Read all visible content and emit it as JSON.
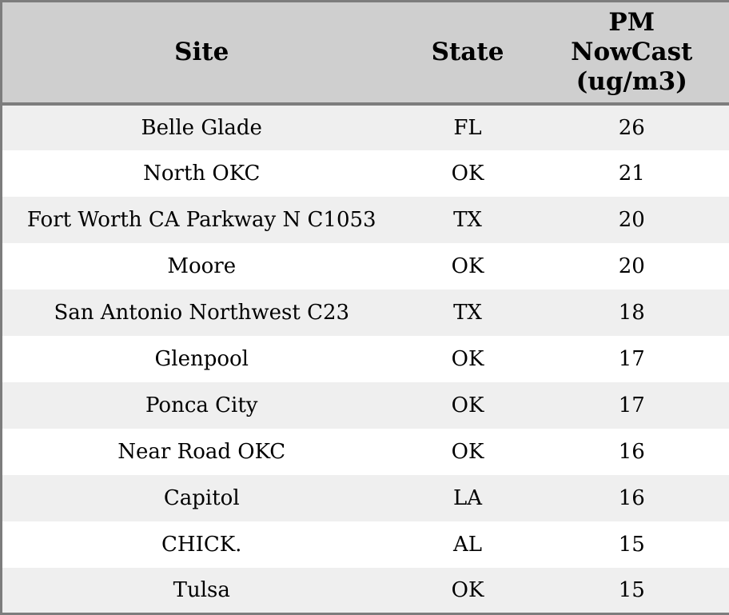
{
  "header": {
    "site": "Site",
    "state": "State",
    "pm_multiline": "PM\nNowCast\n(ug/m3)"
  },
  "chart_data": {
    "type": "table",
    "columns": [
      "Site",
      "State",
      "PM NowCast (ug/m3)"
    ],
    "rows": [
      [
        "Belle Glade",
        "FL",
        26
      ],
      [
        "North OKC",
        "OK",
        21
      ],
      [
        "Fort Worth CA Parkway N C1053",
        "TX",
        20
      ],
      [
        "Moore",
        "OK",
        20
      ],
      [
        "San Antonio Northwest C23",
        "TX",
        18
      ],
      [
        "Glenpool",
        "OK",
        17
      ],
      [
        "Ponca City",
        "OK",
        17
      ],
      [
        "Near Road OKC",
        "OK",
        16
      ],
      [
        "Capitol",
        "LA",
        16
      ],
      [
        "CHICK.",
        "AL",
        15
      ],
      [
        "Tulsa",
        "OK",
        15
      ]
    ],
    "layout": {
      "striped": true,
      "first_data_row_shaded": true,
      "text_alignment": "center"
    }
  },
  "colors": {
    "header_bg": "#cfcfcf",
    "row_stripe": "#efefef",
    "row_alt": "#ffffff",
    "border": "#7d7d7d",
    "text": "#000000"
  }
}
